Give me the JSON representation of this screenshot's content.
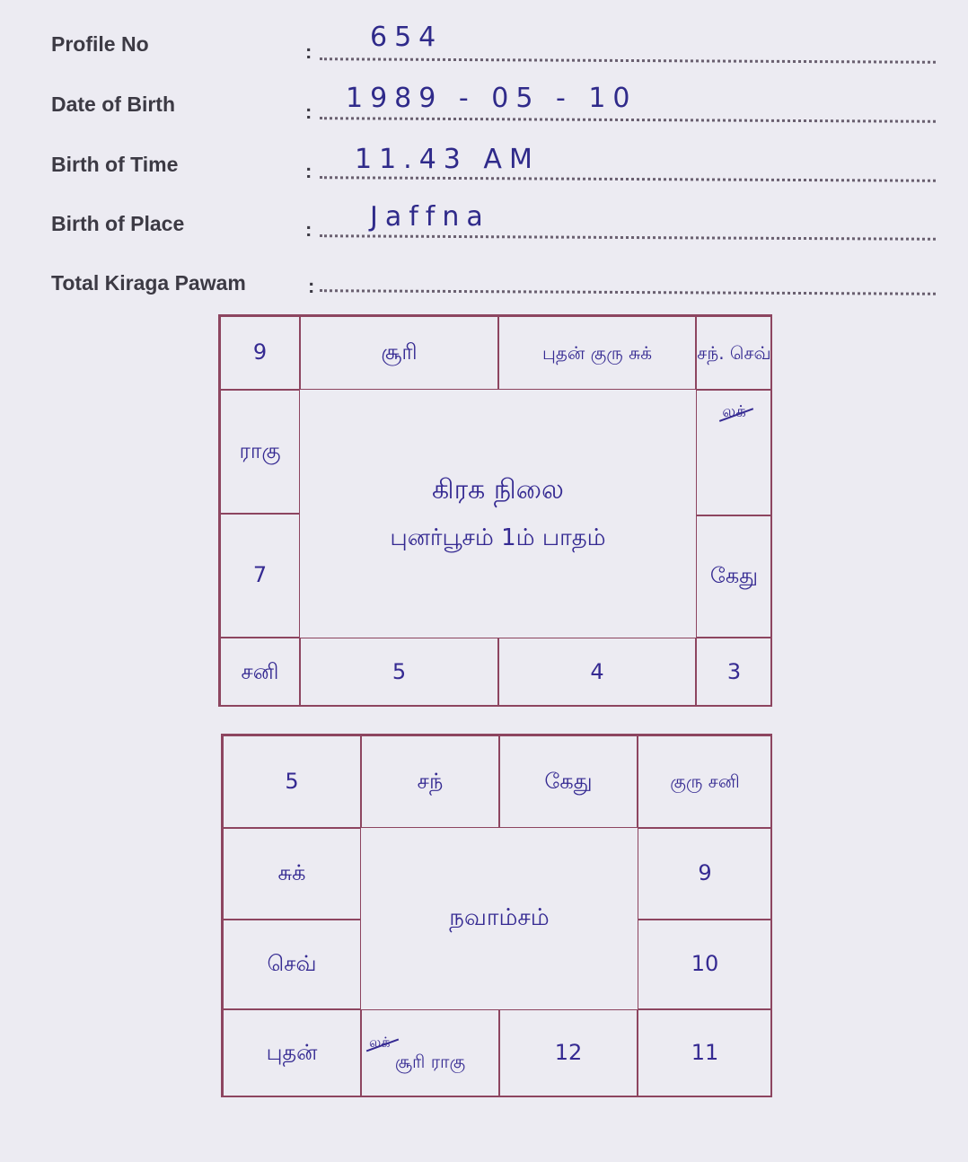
{
  "form": {
    "fields": [
      {
        "label": "Profile No",
        "value": "654"
      },
      {
        "label": "Date of Birth",
        "value": "1989 - 05 - 10"
      },
      {
        "label": "Birth of Time",
        "value": "11.43 AM"
      },
      {
        "label": "Birth of Place",
        "value": "Jaffna"
      },
      {
        "label": "Total Kiraga Pawam",
        "value": ""
      }
    ],
    "colon": ":"
  },
  "rasi_chart": {
    "title": "கிரக நிலை",
    "subtitle": "புனர்பூசம் 1ம் பாதம்",
    "cells": {
      "r1c1": "9",
      "r1c2": "சூரி",
      "r1c3": "புதன் குரு சுக்",
      "r1c4": "சந். செவ்",
      "r2c1": "ராகு",
      "r2c4": "லக்",
      "r3c1": "7",
      "r3c4": "கேது",
      "r4c1": "சனி",
      "r4c2": "5",
      "r4c3": "4",
      "r4c4": "3"
    }
  },
  "navamsa_chart": {
    "title": "நவாம்சம்",
    "cells": {
      "r1c1": "5",
      "r1c2": "சந்",
      "r1c3": "கேது",
      "r1c4": "குரு சனி",
      "r2c1": "சுக்",
      "r2c4": "9",
      "r3c1": "செவ்",
      "r3c4": "10",
      "r4c1": "புதன்",
      "r4c2_mark": "லக்",
      "r4c2": "சூரி ராகு",
      "r4c3": "12",
      "r4c4": "11"
    }
  },
  "colors": {
    "ink": "#352a92",
    "grid": "#8d4560",
    "paper": "#ecebf2"
  }
}
